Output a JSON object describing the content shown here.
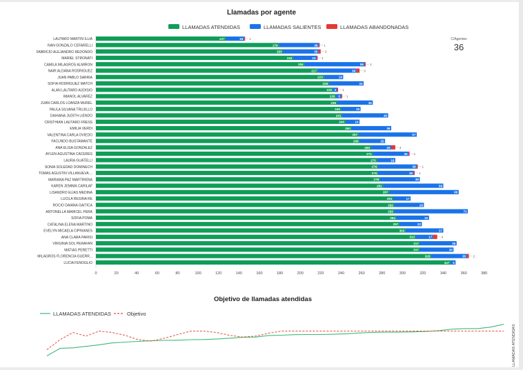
{
  "chart_data": [
    {
      "type": "bar",
      "orientation": "horizontal",
      "stacked": true,
      "title": "Llamadas por agente",
      "legend_position": "top",
      "colors": {
        "atendidas": "#0f9d58",
        "salientes": "#1a73e8",
        "abandonadas": "#e53935"
      },
      "xlim": [
        0,
        390
      ],
      "xticks": [
        "0",
        "20",
        "40",
        "60",
        "80",
        "100",
        "120",
        "140",
        "160",
        "180",
        "200",
        "220",
        "240",
        "260",
        "280",
        "300",
        "320",
        "340",
        "360",
        "380"
      ],
      "categories": [
        "LAUTARO MARTIN ILLIA",
        "IVAN GONZALO CEFARELLI",
        "FABRICIO ALEJANDRO REDONDO",
        "MARIEL STRONATI",
        "CAMILA MILAGROS ALMIRON",
        "NAIR ALDANA RODRIGUEZ",
        "JUAN PABLO SARRIA",
        "SOFIA RODRIGUEZ MATCH",
        "ALAN LAUTARO AUDISIO",
        "IMANOL ALVAREZ",
        "JUAN CARLOS LOANZA MUREL",
        "PAULA SILVANA TRUJILLO",
        "DAHIANA JUDITH LIENDO",
        "CRISTHIAN LAUTARO FRESS",
        "EMILIA VERDI",
        "VALENTINA CARLA OVIEDO",
        "FACUNDO BUSTAMANTE",
        "ANA ELISA GONZALEZ",
        "AYLEN AGUSTINA CACERES",
        "LAURA GUATELLI",
        "SONIA SOLEDAD DOMINECH",
        "TOMAS AGUSTIN VILLANUEVA ...",
        "MARIANA PAZ MARTIRENA",
        "KAREN JEMIMA CARILAF",
        "LISANDRO ELIAS MEDINA",
        "LUCILA REGINA RE",
        "ROCIO DAIANA GAITICA",
        "ANTONELLA MARICEL PERA",
        "SOFIA POMA",
        "CATALINA ELENA MARTINO",
        "EVELYN MICAELA CIPRIANES",
        "ANA CLARA PARISI",
        "VIRGINIA SOL PERAFAN",
        "MATIAS PERETTI",
        "MILAGROS FLORENCIA GUERR...",
        "LUCIA FENOGLIO"
      ],
      "series": [
        {
          "name": "LLAMADAS ATENDIDAS",
          "values": [
            127,
            179,
            183,
            193,
            204,
            217,
            223,
            228,
            232,
            235,
            236,
            240,
            241,
            244,
            250,
            257,
            258,
            269,
            271,
            275,
            276,
            276,
            278,
            281,
            287,
            291,
            292,
            292,
            294,
            297,
            303,
            313,
            317,
            317,
            328,
            347
          ],
          "labels": [
            "127",
            "179",
            "183",
            "193",
            "204",
            "217",
            "223",
            "228",
            "232",
            "235",
            "236",
            "240",
            "241",
            "244",
            "250",
            "257",
            "258",
            "269",
            "271",
            "275",
            "276",
            "276",
            "278",
            "281",
            "287",
            "291",
            "292",
            "292",
            "294",
            "297",
            "303",
            "313",
            "317",
            "317",
            "328",
            "347"
          ]
        },
        {
          "name": "LLAMADAS SALIENTES",
          "values": [
            18,
            39,
            35,
            23,
            59,
            38,
            19,
            34,
            4,
            5,
            35,
            19,
            45,
            14,
            39,
            57,
            25,
            20,
            35,
            18,
            38,
            35,
            39,
            59,
            68,
            17,
            29,
            72,
            32,
            22,
            37,
            17,
            36,
            33,
            35,
            5
          ],
          "labels": [
            "18",
            "39",
            "35",
            "23",
            "59",
            "38",
            "19",
            "34",
            "4",
            "5",
            "35",
            "19",
            "45",
            "14",
            "39",
            "57",
            "25",
            "20",
            "35",
            "18",
            "38",
            "35",
            "39",
            "59",
            "68",
            "17",
            "29",
            "72",
            "32",
            "22",
            "37",
            "17",
            "36",
            "33",
            "35",
            "5"
          ]
        },
        {
          "name": "LLAMADAS ABANDONADAS",
          "values": [
            1,
            1,
            2,
            1,
            1,
            3,
            0,
            0,
            1,
            1,
            0,
            0,
            0,
            0,
            0,
            0,
            0,
            4,
            1,
            0,
            1,
            1,
            0,
            0,
            0,
            0,
            0,
            0,
            0,
            0,
            0,
            4,
            0,
            0,
            2,
            0
          ],
          "labels": [
            "1",
            "1",
            "2",
            "1",
            "1",
            "3",
            "",
            "",
            "1",
            "1",
            "",
            "",
            "",
            "",
            "",
            "",
            "",
            "4",
            "1",
            "",
            "1",
            "1",
            "",
            "",
            "",
            "",
            "",
            "",
            "",
            "",
            "",
            "4",
            "",
            "",
            "2",
            ""
          ]
        }
      ]
    },
    {
      "type": "line",
      "title": "Objetivo de llamadas atendidas",
      "legend_position": "top-left",
      "y_axis_label": "LLAMADAS ATENDIDAS",
      "series": [
        {
          "name": "LLAMADAS ATENDIDAS",
          "color": "#3cb878",
          "dash": "solid",
          "values": [
            127,
            179,
            183,
            193,
            204,
            217,
            223,
            228,
            232,
            235,
            236,
            240,
            241,
            244,
            250,
            257,
            258,
            269,
            271,
            275,
            276,
            276,
            278,
            281,
            287,
            291,
            292,
            292,
            294,
            297,
            303,
            313,
            317,
            317,
            328,
            347
          ]
        },
        {
          "name": "Objetivo",
          "color": "#e34b33",
          "dash": "dashed",
          "values": [
            170,
            240,
            290,
            265,
            300,
            290,
            270,
            240,
            230,
            250,
            275,
            300,
            300,
            290,
            270,
            258,
            265,
            285,
            300,
            300,
            300,
            300,
            300,
            300,
            300,
            300,
            300,
            300,
            300,
            300,
            300,
            300,
            300,
            300,
            300,
            300
          ]
        }
      ]
    }
  ],
  "kpi": {
    "label": "C/Agentes",
    "value": "36"
  }
}
